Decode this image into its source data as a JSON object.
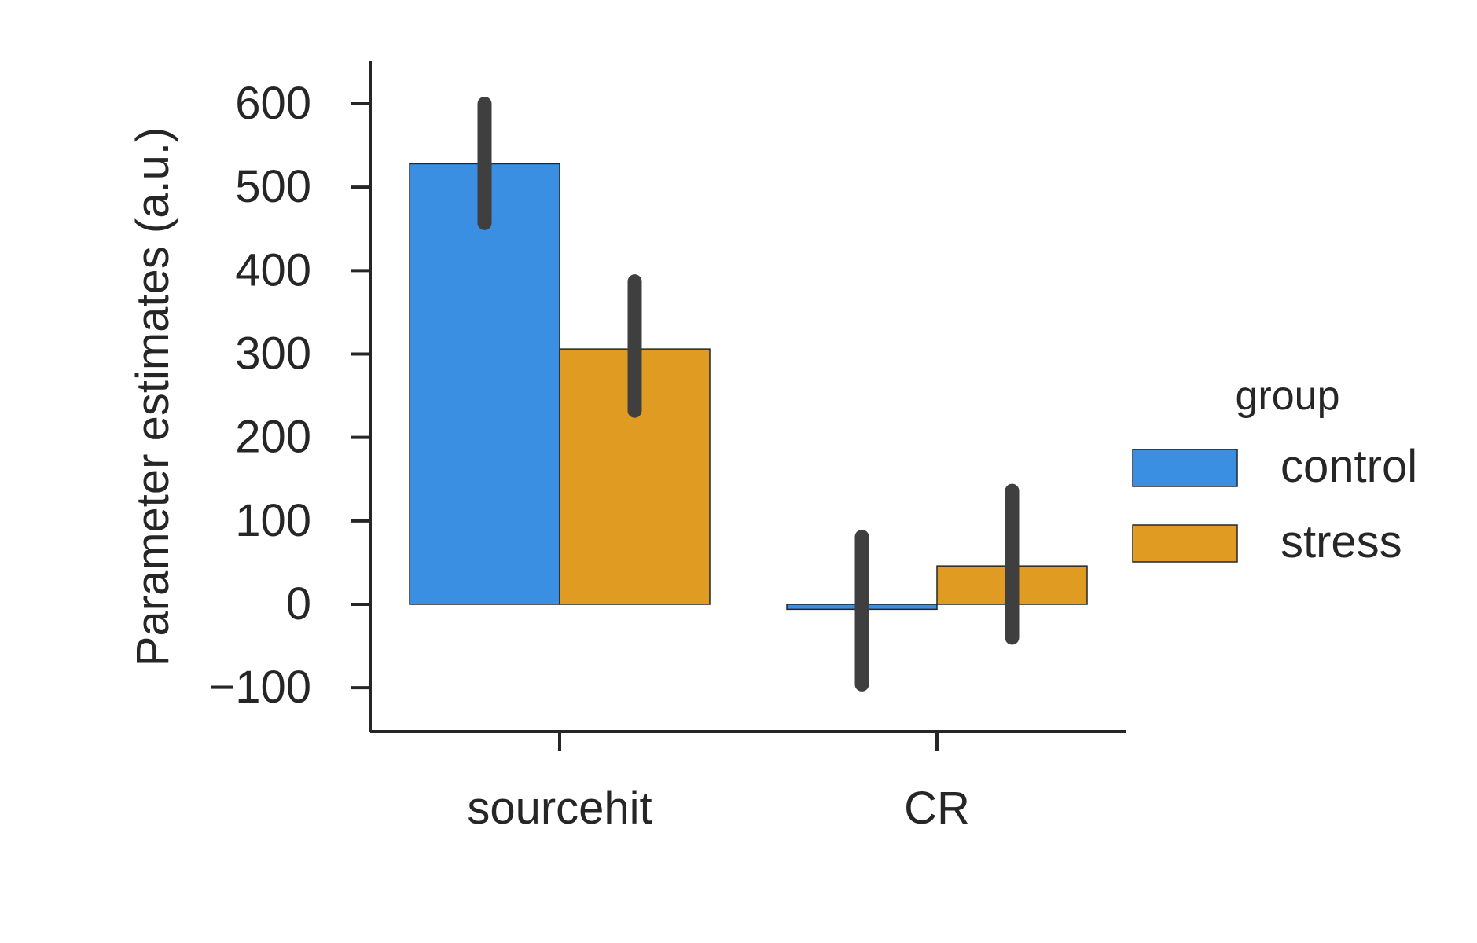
{
  "chart_data": {
    "type": "bar",
    "title": "",
    "xlabel": "",
    "ylabel": "Parameter estimates (a.u.)",
    "categories": [
      "sourcehit",
      "CR"
    ],
    "ylim": [
      -150,
      650
    ],
    "yticks": [
      -100,
      0,
      100,
      200,
      300,
      400,
      500,
      600
    ],
    "ytick_labels": [
      "−100",
      "0",
      "100",
      "200",
      "300",
      "400",
      "500",
      "600"
    ],
    "grid": false,
    "legend": {
      "title": "group",
      "placement": "right"
    },
    "series": [
      {
        "name": "control",
        "color": "#3a8fe3",
        "values": [
          528,
          -6
        ],
        "error_low": [
          457,
          -96
        ],
        "error_high": [
          600,
          81
        ]
      },
      {
        "name": "stress",
        "color": "#e09c22",
        "values": [
          306,
          46
        ],
        "error_low": [
          232,
          -40
        ],
        "error_high": [
          387,
          136
        ]
      }
    ],
    "error_bar_color": "#3f3f3f"
  }
}
